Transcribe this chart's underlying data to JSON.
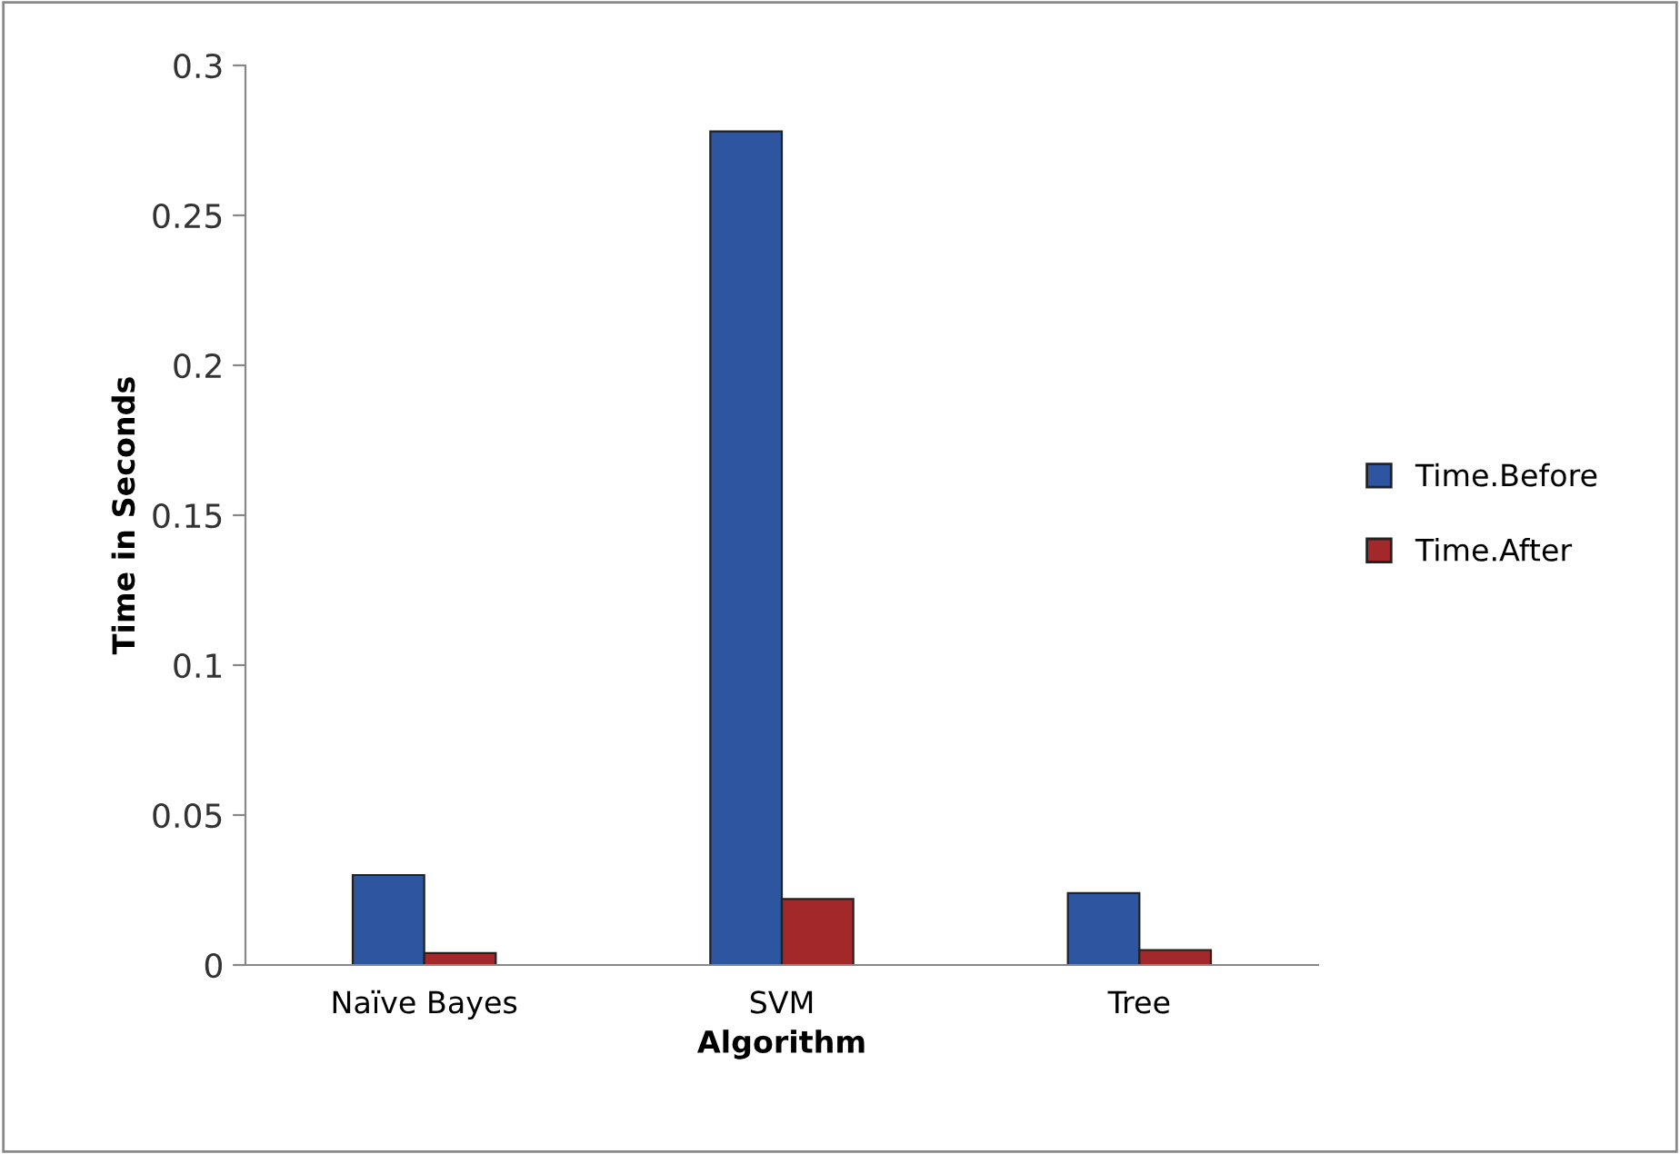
{
  "chart_data": {
    "type": "bar",
    "xlabel": "Algorithm",
    "ylabel": "Time in Seconds",
    "categories": [
      "Naïve Bayes",
      "SVM",
      "Tree"
    ],
    "series": [
      {
        "name": "Time.Before",
        "color": "#2e55a0",
        "values": [
          0.03,
          0.278,
          0.024
        ]
      },
      {
        "name": "Time.After",
        "color": "#a3282a",
        "values": [
          0.004,
          0.022,
          0.005
        ]
      }
    ],
    "ylim": [
      0,
      0.3
    ],
    "yticks": [
      0,
      0.05,
      0.1,
      0.15,
      0.2,
      0.25,
      0.3
    ],
    "grid": false,
    "legend": "right"
  }
}
